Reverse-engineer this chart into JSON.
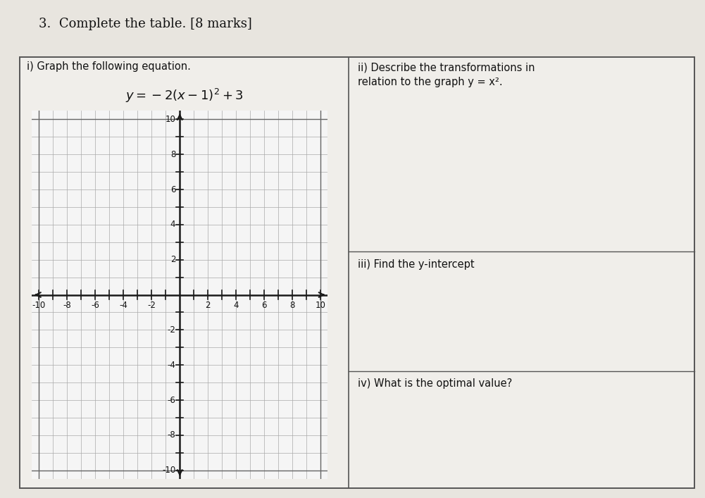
{
  "title": "3.  Complete the table. [8 marks]",
  "cell1_header": "i) Graph the following equation.",
  "cell2_header_ii": "ii) Describe the transformations in\nrelation to the graph y = x².",
  "cell3_header_iii": "iii) Find the y-intercept",
  "cell4_header_iv": "iv) What is the optimal value?",
  "grid_xmin": -10,
  "grid_xmax": 10,
  "grid_ymin": -10,
  "grid_ymax": 10,
  "xticks": [
    -10,
    -8,
    -6,
    -4,
    -2,
    2,
    4,
    6,
    8,
    10
  ],
  "yticks": [
    -10,
    -8,
    -6,
    -4,
    -2,
    2,
    4,
    6,
    8,
    10
  ],
  "page_bg": "#e8e5df",
  "cell_bg": "#f0eeea",
  "grid_color": "#aaaaaa",
  "grid_bg": "#f5f5f5",
  "axis_color": "#1a1a1a",
  "table_border_color": "#555555",
  "title_fontsize": 13,
  "label_fontsize": 10.5,
  "equation_fontsize": 13,
  "tick_fontsize": 8.5
}
